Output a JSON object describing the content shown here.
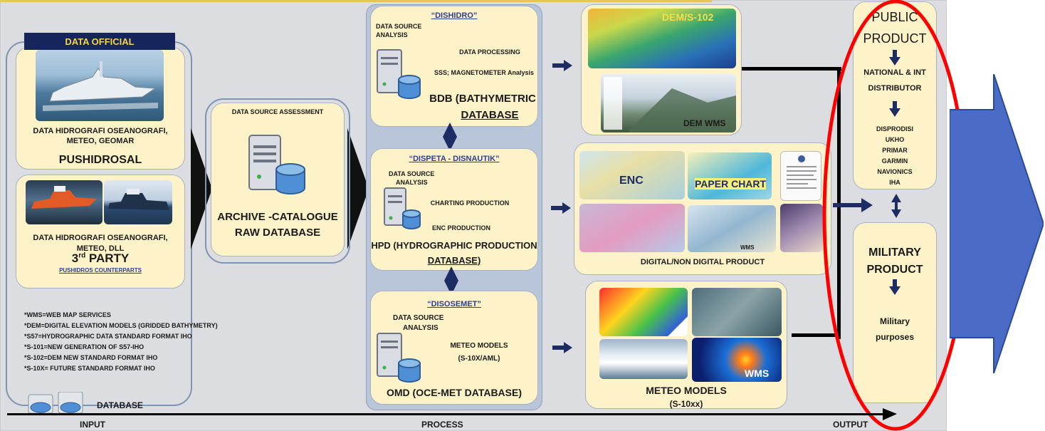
{
  "input": {
    "official_banner": "DATA OFFICIAL",
    "official_desc_line1": "DATA  HIDROGRAFI OSEANOGRAFI,",
    "official_desc_line2": "METEO, GEOMAR",
    "official_name": "PUSHIDROSAL",
    "third_desc_line1": "DATA  HIDROGRAFI OSEANOGRAFI,",
    "third_desc_line2": "METEO, DLL",
    "third_name_num": "3",
    "third_name_sup": "rd",
    "third_name_word": " PARTY",
    "third_link": "PUSHIDROS COUNTERPARTS"
  },
  "archive": {
    "header": "DATA SOURCE ASSESSMENT",
    "title_line1": "ARCHIVE -CATALOGUE",
    "title_line2": "RAW DATABASE"
  },
  "process": {
    "dishidro": {
      "link": "“DISHIDRO”",
      "dsa_line1": "DATA SOURCE",
      "dsa_line2": "ANALYSIS",
      "step1": "DATA PROCESSING",
      "step2": "SSS; MAGNETOMETER Analysis",
      "db_line1": "BDB (BATHYMETRIC",
      "db_line2": "DATABASE"
    },
    "dispeta": {
      "link": "“DISPETA - DISNAUTIK”",
      "dsa_line1": "DATA SOURCE",
      "dsa_line2": "ANALYSIS",
      "step1": "CHARTING PRODUCTION",
      "step2": "ENC PRODUCTION",
      "db_line1": "HPD (HYDROGRAPHIC PRODUCTION",
      "db_line2": "DATABASE)"
    },
    "disosemet": {
      "link": "“DISOSEMET”",
      "dsa_line1": "DATA SOURCE",
      "dsa_line2": "ANALYSIS",
      "step1": "METEO MODELS",
      "step2": "(S-10X/AML)",
      "db": "OMD (OCE-MET DATABASE)"
    }
  },
  "products": {
    "dem_label": "DEM/S-102",
    "dem_wms": "DEM WMS",
    "enc": "ENC",
    "paper_chart": "PAPER CHART",
    "wms_small": "WMS",
    "digital_caption": "DIGITAL/NON DIGITAL PRODUCT",
    "meteo_wms": "WMS",
    "meteo_line1": "METEO MODELS",
    "meteo_line2": "(S-10xx)"
  },
  "output": {
    "public_line1": "PUBLIC",
    "public_line2": "PRODUCT",
    "distributor_line1": "NATIONAL & INT",
    "distributor_line2": "DISTRIBUTOR",
    "distributors": [
      "DISPRODISI",
      "UKHO",
      "PRIMAR",
      "GARMIN",
      "NAVIONICS",
      "IHA"
    ],
    "military_line1": "MILITARY",
    "military_line2": "PRODUCT",
    "military_purpose_line1": "Military",
    "military_purpose_line2": "purposes"
  },
  "legend": {
    "notes": [
      "*WMS=WEB MAP SERVICES",
      "*DEM=DIGITAL ELEVATION MODELS (GRIDDED BATHYMETRY)",
      "*S57=HYDROGRAPHIC DATA STANDARD FORMAT IHO",
      "*S-101=NEW GENERATION OF S57-IHO",
      "*S-102=DEM NEW STANDARD FORMAT IHO",
      "*S-10X= FUTURE STANDARD FORMAT IHO"
    ],
    "database_label": "DATABASE"
  },
  "axis": {
    "input": "INPUT",
    "process": "PROCESS",
    "output": "OUTPUT"
  },
  "colors": {
    "box_fill": "#fdf2c8",
    "canvas": "#dcdde1",
    "accent_navy": "#16265c",
    "link_blue": "#2f3d96",
    "highlight_red": "#ff0000",
    "big_arrow": "#4a6cc7"
  }
}
